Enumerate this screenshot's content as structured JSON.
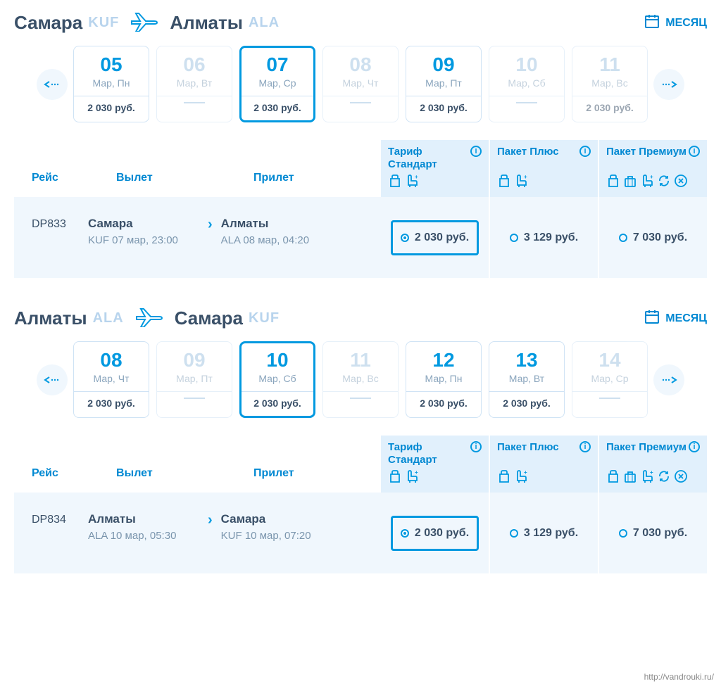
{
  "month_label": "МЕСЯЦ",
  "col_labels": {
    "flight": "Рейс",
    "departure": "Вылет",
    "arrival": "Прилет"
  },
  "tariffs": [
    {
      "title": "Тариф Стандарт",
      "icons": [
        "bag",
        "seat"
      ]
    },
    {
      "title": "Пакет Плюс",
      "icons": [
        "bag",
        "seat"
      ]
    },
    {
      "title": "Пакет Премиум",
      "icons": [
        "bag",
        "case",
        "seat",
        "refresh",
        "cancel"
      ]
    }
  ],
  "segments": [
    {
      "from_city": "Самара",
      "from_code": "KUF",
      "to_city": "Алматы",
      "to_code": "ALA",
      "dates": [
        {
          "day": "05",
          "sub": "Мар, Пн",
          "price": "2 030 руб.",
          "faded": false,
          "selected": false
        },
        {
          "day": "06",
          "sub": "Мар, Вт",
          "price": null,
          "faded": true,
          "selected": false
        },
        {
          "day": "07",
          "sub": "Мар, Ср",
          "price": "2 030 руб.",
          "faded": false,
          "selected": true
        },
        {
          "day": "08",
          "sub": "Мар, Чт",
          "price": null,
          "faded": true,
          "selected": false
        },
        {
          "day": "09",
          "sub": "Мар, Пт",
          "price": "2 030 руб.",
          "faded": false,
          "selected": false
        },
        {
          "day": "10",
          "sub": "Мар, Сб",
          "price": null,
          "faded": true,
          "selected": false
        },
        {
          "day": "11",
          "sub": "Мар, Вс",
          "price": "2 030 руб.",
          "faded": true,
          "selected": false
        }
      ],
      "flight": {
        "code": "DP833",
        "dep_city": "Самара",
        "dep_detail": "KUF 07 мар, 23:00",
        "arr_city": "Алматы",
        "arr_detail": "ALA 08 мар, 04:20",
        "prices": [
          {
            "value": "2 030 руб.",
            "selected": true
          },
          {
            "value": "3 129 руб.",
            "selected": false
          },
          {
            "value": "7 030 руб.",
            "selected": false
          }
        ]
      }
    },
    {
      "from_city": "Алматы",
      "from_code": "ALA",
      "to_city": "Самара",
      "to_code": "KUF",
      "dates": [
        {
          "day": "08",
          "sub": "Мар, Чт",
          "price": "2 030 руб.",
          "faded": false,
          "selected": false
        },
        {
          "day": "09",
          "sub": "Мар, Пт",
          "price": null,
          "faded": true,
          "selected": false
        },
        {
          "day": "10",
          "sub": "Мар, Сб",
          "price": "2 030 руб.",
          "faded": false,
          "selected": true
        },
        {
          "day": "11",
          "sub": "Мар, Вс",
          "price": null,
          "faded": true,
          "selected": false
        },
        {
          "day": "12",
          "sub": "Мар, Пн",
          "price": "2 030 руб.",
          "faded": false,
          "selected": false
        },
        {
          "day": "13",
          "sub": "Мар, Вт",
          "price": "2 030 руб.",
          "faded": false,
          "selected": false
        },
        {
          "day": "14",
          "sub": "Мар, Ср",
          "price": null,
          "faded": true,
          "selected": false
        }
      ],
      "flight": {
        "code": "DP834",
        "dep_city": "Алматы",
        "dep_detail": "ALA 10 мар, 05:30",
        "arr_city": "Самара",
        "arr_detail": "KUF 10 мар, 07:20",
        "prices": [
          {
            "value": "2 030 руб.",
            "selected": true
          },
          {
            "value": "3 129 руб.",
            "selected": false
          },
          {
            "value": "7 030 руб.",
            "selected": false
          }
        ]
      }
    }
  ],
  "watermark": "http://vandrouki.ru/"
}
